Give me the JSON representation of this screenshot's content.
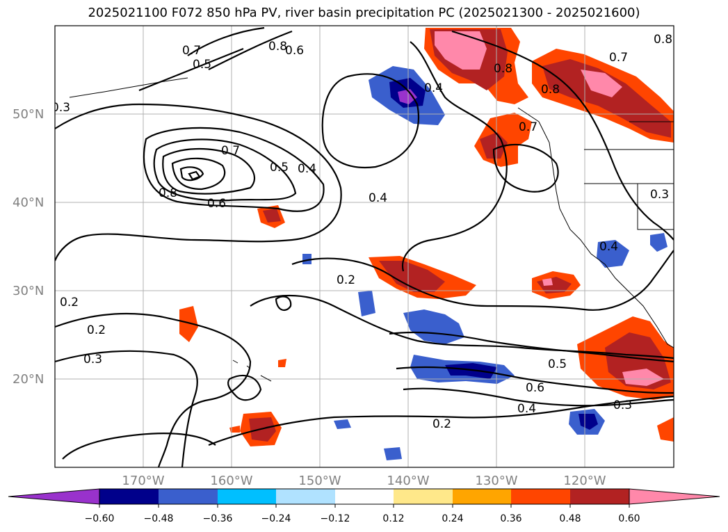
{
  "title": "2025021100 F072 850 hPa PV, river basin precipitation PC (2025021300 - 2025021600)",
  "map": {
    "lon_range": [
      -180,
      -110
    ],
    "lat_range": [
      10,
      60
    ],
    "lat_labels": [
      {
        "value": 20,
        "text": "20°N"
      },
      {
        "value": 30,
        "text": "30°N"
      },
      {
        "value": 40,
        "text": "40°N"
      },
      {
        "value": 50,
        "text": "50°N"
      }
    ],
    "lon_labels": [
      {
        "value": -170,
        "text": "170°W"
      },
      {
        "value": -160,
        "text": "160°W"
      },
      {
        "value": -150,
        "text": "150°W"
      },
      {
        "value": -140,
        "text": "140°W"
      },
      {
        "value": -130,
        "text": "130°W"
      },
      {
        "value": -120,
        "text": "120°W"
      }
    ],
    "contour_labels": [
      "0.2",
      "0.3",
      "0.4",
      "0.5",
      "0.6",
      "0.7",
      "0.8"
    ]
  },
  "colorbar": {
    "ticks": [
      "−0.60",
      "−0.48",
      "−0.36",
      "−0.24",
      "−0.12",
      "0.12",
      "0.24",
      "0.36",
      "0.48",
      "0.60"
    ],
    "under_color": "#9932cc",
    "over_color": "#ff88aa",
    "colors": [
      "#00008b",
      "#3a5fcd",
      "#00bfff",
      "#b0e2ff",
      "#ffffff",
      "#ffe88a",
      "#ffa500",
      "#ff4500",
      "#b22222"
    ]
  }
}
